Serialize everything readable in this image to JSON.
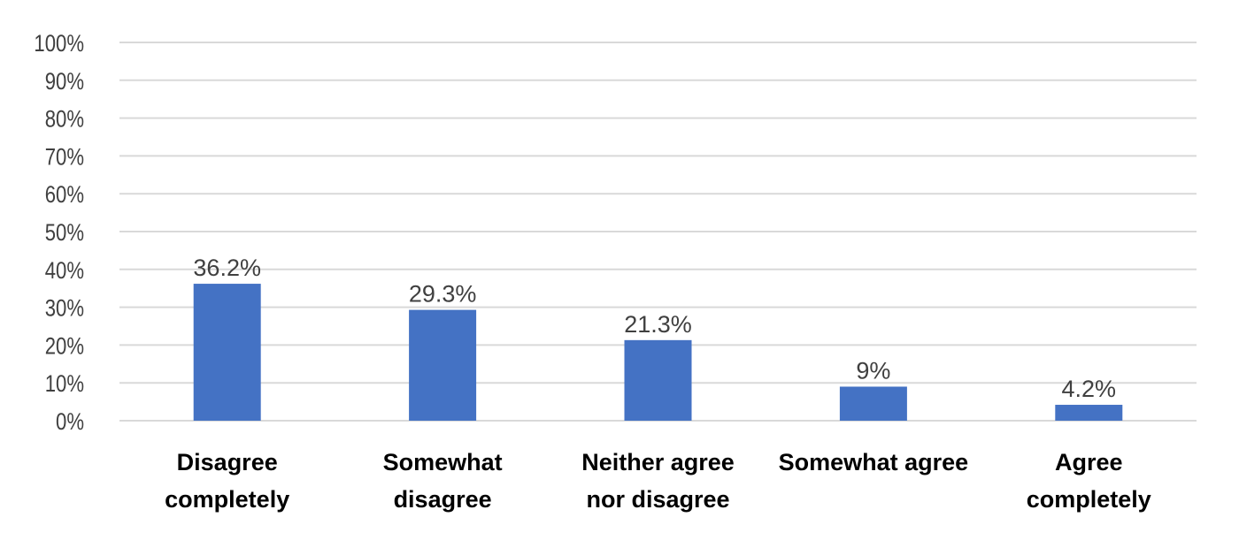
{
  "chart_data": {
    "type": "bar",
    "categories": [
      [
        "Disagree",
        "completely"
      ],
      [
        "Somewhat",
        "disagree"
      ],
      [
        "Neither agree",
        "nor disagree"
      ],
      [
        "Somewhat agree"
      ],
      [
        "Agree",
        "completely"
      ]
    ],
    "values": [
      36.2,
      29.3,
      21.3,
      9,
      4.2
    ],
    "data_labels": [
      "36.2%",
      "29.3%",
      "21.3%",
      "9%",
      "4.2%"
    ],
    "y_ticks": [
      "0%",
      "10%",
      "20%",
      "30%",
      "40%",
      "50%",
      "60%",
      "70%",
      "80%",
      "90%",
      "100%"
    ],
    "ylim": [
      0,
      100
    ],
    "grid": true,
    "legend": "none",
    "title": "",
    "xlabel": "",
    "ylabel": "",
    "colors": {
      "bar": "#4472c4",
      "grid": "#d9d9d9",
      "tick_text": "#404040",
      "category_text": "#000000"
    }
  }
}
